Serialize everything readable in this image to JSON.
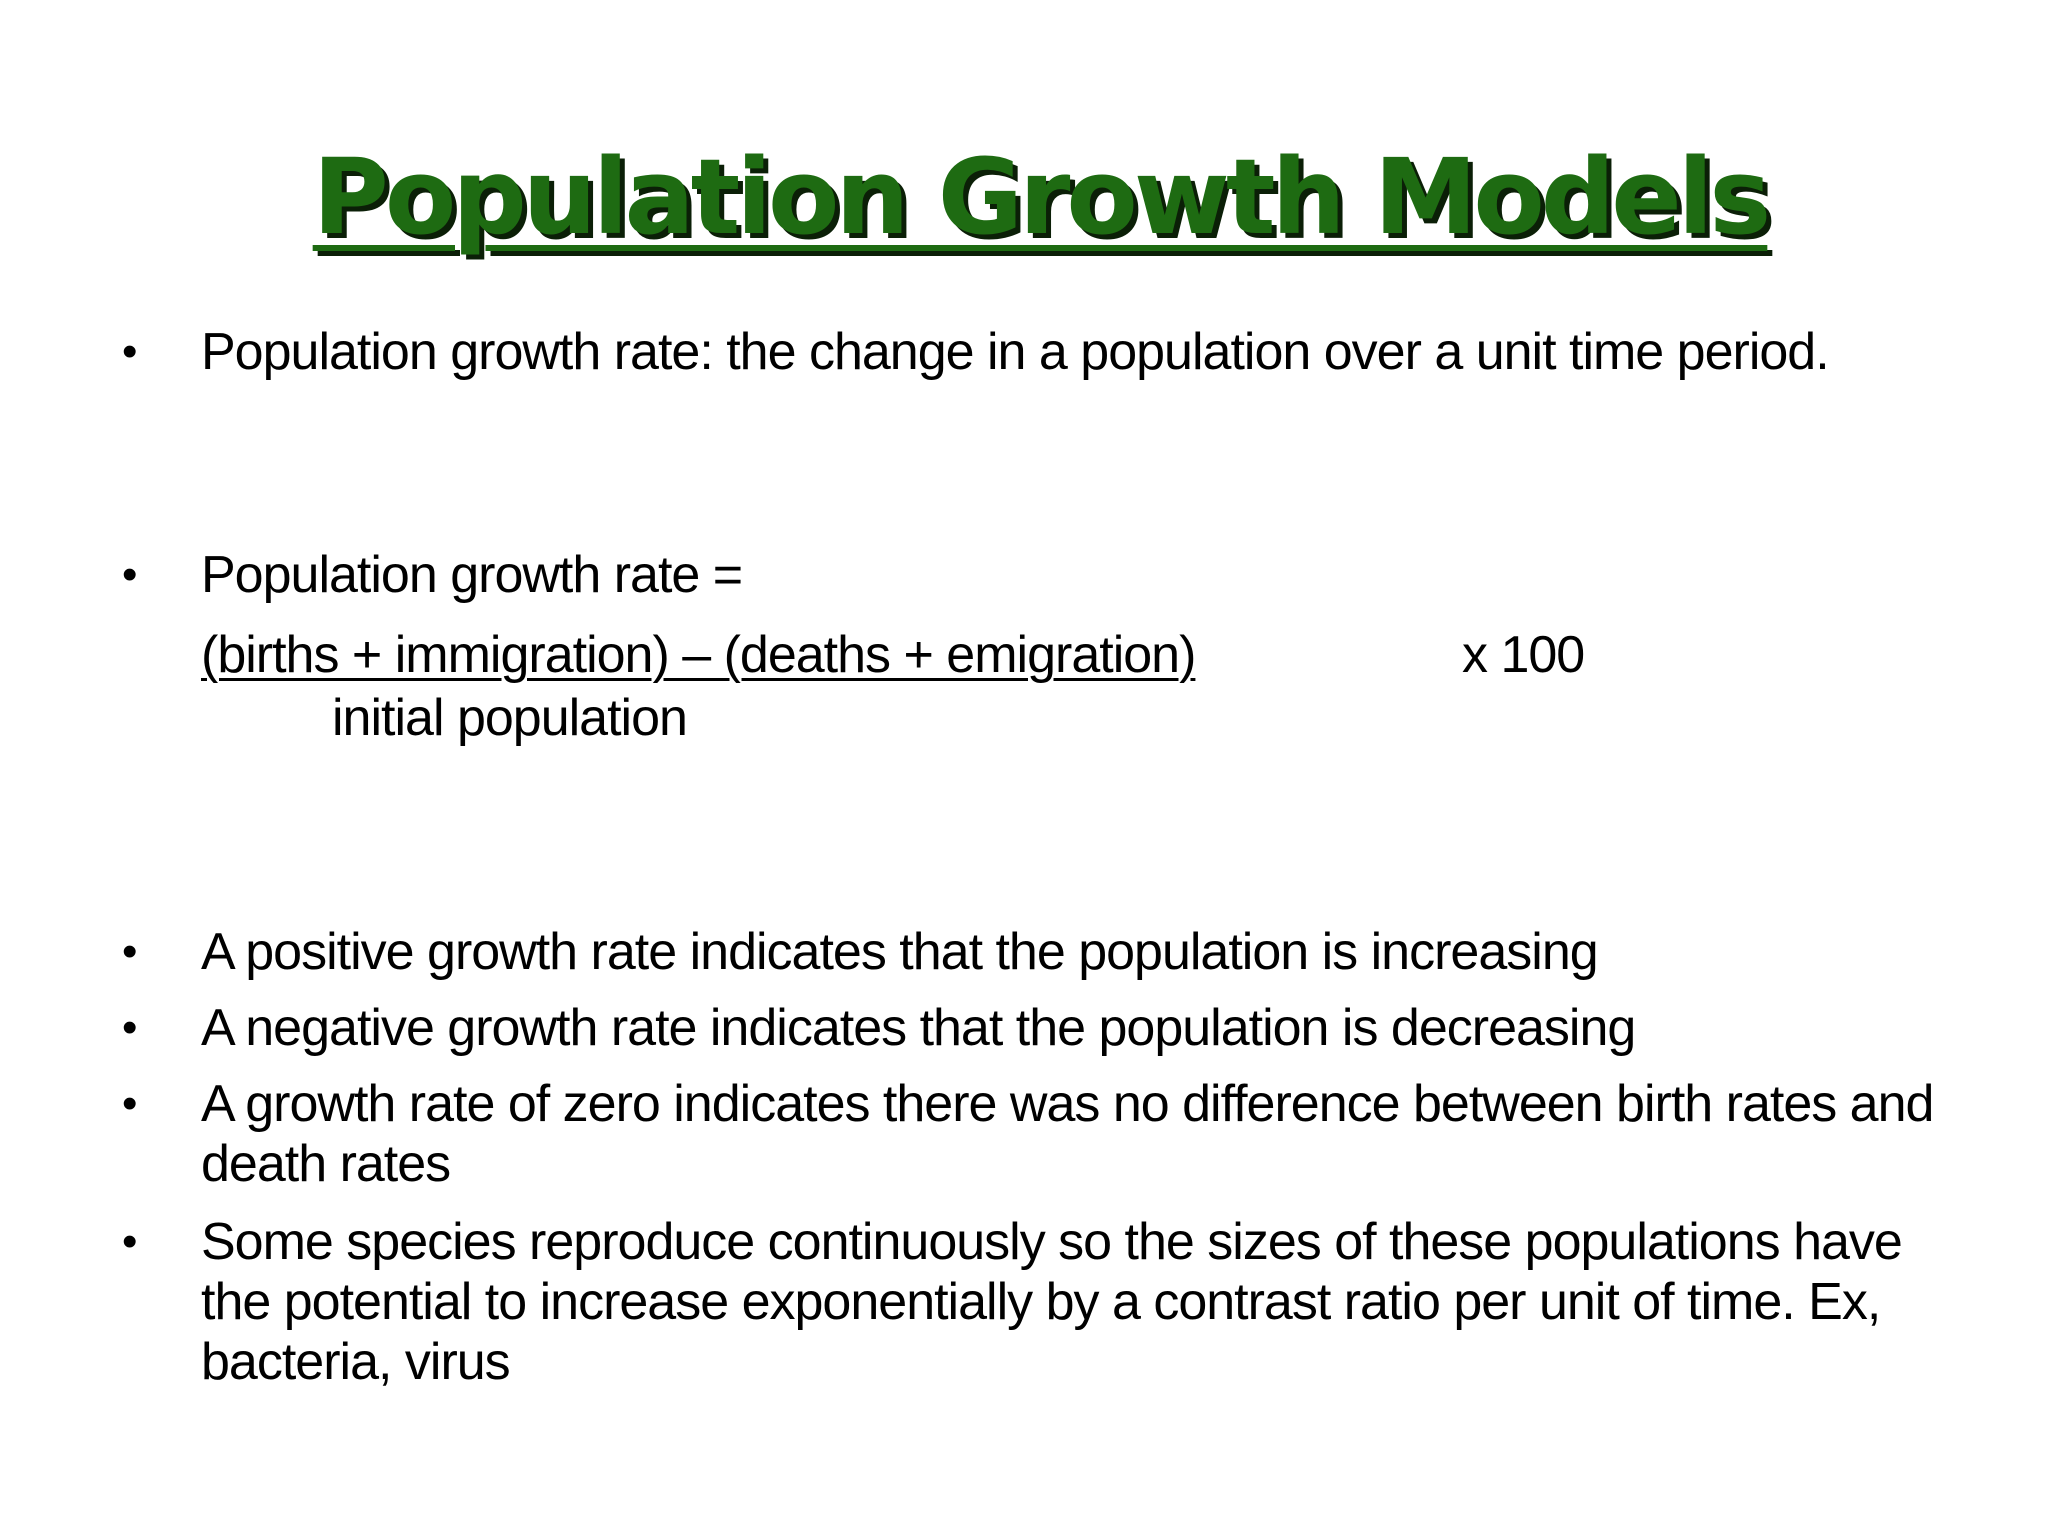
{
  "slide": {
    "title": "Population Growth Models",
    "bullets": [
      "Population growth rate: the change in a population over a unit time period.",
      "Population  growth rate =",
      "A positive growth rate indicates that the population is increasing",
      "A negative growth rate indicates that the population is decreasing",
      "A growth rate of zero indicates there was no difference between birth rates and death rates",
      "Some species reproduce continuously so the sizes of these populations have the potential to increase exponentially by a contrast ratio per unit of time. Ex, bacteria, virus"
    ],
    "formula": {
      "numerator": "(births + immigration) – (deaths + emigration)    ",
      "multiplier": "x 100",
      "denominator": "initial population"
    },
    "bullet_char": "•"
  }
}
